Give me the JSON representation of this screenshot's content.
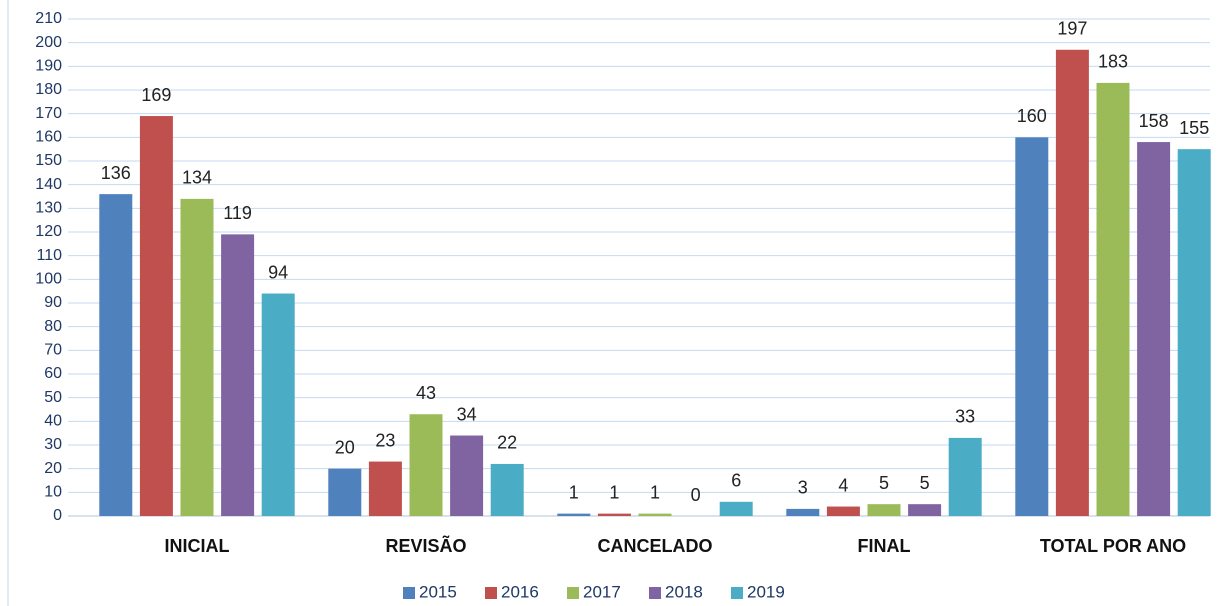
{
  "chart_data": {
    "type": "bar",
    "categories": [
      "INICIAL",
      "REVISÃO",
      "CANCELADO",
      "FINAL",
      "TOTAL POR ANO"
    ],
    "series": [
      {
        "name": "2015",
        "color": "#4f81bd",
        "values": [
          136,
          20,
          1,
          3,
          160
        ]
      },
      {
        "name": "2016",
        "color": "#c0504d",
        "values": [
          169,
          23,
          1,
          4,
          197
        ]
      },
      {
        "name": "2017",
        "color": "#9bbb59",
        "values": [
          134,
          43,
          1,
          5,
          183
        ]
      },
      {
        "name": "2018",
        "color": "#8064a2",
        "values": [
          119,
          34,
          0,
          5,
          158
        ]
      },
      {
        "name": "2019",
        "color": "#4bacc6",
        "values": [
          94,
          22,
          6,
          33,
          155
        ]
      }
    ],
    "ylim": [
      0,
      210
    ],
    "yticks": [
      0,
      10,
      20,
      30,
      40,
      50,
      60,
      70,
      80,
      90,
      100,
      110,
      120,
      130,
      140,
      150,
      160,
      170,
      180,
      190,
      200,
      210
    ],
    "grid": true,
    "legend": "bottom"
  }
}
